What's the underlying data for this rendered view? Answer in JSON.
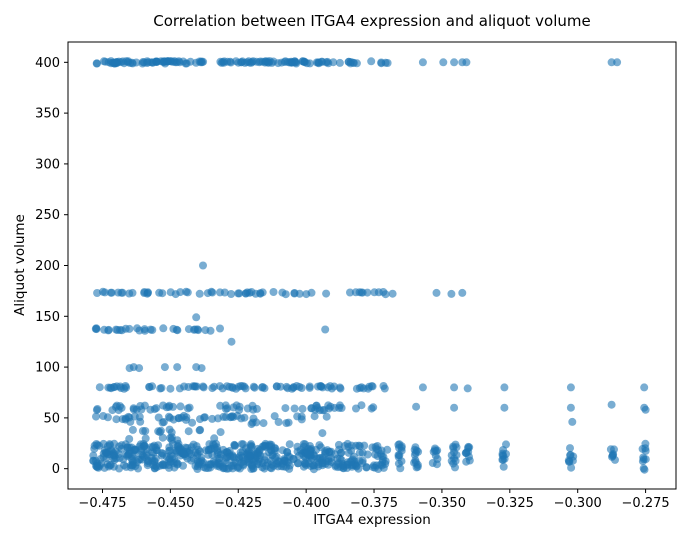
{
  "chart_data": {
    "type": "scatter",
    "title": "Correlation between ITGA4 expression and aliquot volume",
    "xlabel": "ITGA4 expression",
    "ylabel": "Aliquot volume",
    "xlim": [
      -0.4877,
      -0.2638
    ],
    "ylim": [
      -20,
      420
    ],
    "grid": false,
    "legend": "none",
    "marker_color": "#1f77b4",
    "marker_alpha": 0.6,
    "marker_radius": 4,
    "seed": 7,
    "xticks": [
      {
        "value": -0.475,
        "label": "−0.475"
      },
      {
        "value": -0.45,
        "label": "−0.450"
      },
      {
        "value": -0.425,
        "label": "−0.425"
      },
      {
        "value": -0.4,
        "label": "−0.400"
      },
      {
        "value": -0.375,
        "label": "−0.375"
      },
      {
        "value": -0.35,
        "label": "−0.350"
      },
      {
        "value": -0.325,
        "label": "−0.325"
      },
      {
        "value": -0.3,
        "label": "−0.300"
      },
      {
        "value": -0.275,
        "label": "−0.275"
      }
    ],
    "yticks": [
      {
        "value": 0,
        "label": "0"
      },
      {
        "value": 50,
        "label": "50"
      },
      {
        "value": 100,
        "label": "100"
      },
      {
        "value": 150,
        "label": "150"
      },
      {
        "value": 200,
        "label": "200"
      },
      {
        "value": 250,
        "label": "250"
      },
      {
        "value": 300,
        "label": "300"
      },
      {
        "value": 350,
        "label": "350"
      },
      {
        "value": 400,
        "label": "400"
      }
    ],
    "bands": [
      {
        "y": 400,
        "jitter": 1.2,
        "x_min": -0.4775,
        "x_max": -0.437,
        "n": 70
      },
      {
        "y": 400,
        "jitter": 1.2,
        "x_min": -0.434,
        "x_max": -0.398,
        "n": 55
      },
      {
        "y": 400,
        "jitter": 1.2,
        "x_min": -0.397,
        "x_max": -0.381,
        "n": 18
      },
      {
        "y": 400,
        "jitter": 1.0,
        "x_min": -0.377,
        "x_max": -0.368,
        "n": 5
      },
      {
        "y": 173,
        "jitter": 1.3,
        "x_min": -0.4775,
        "x_max": -0.398,
        "n": 48
      },
      {
        "y": 173,
        "jitter": 1.3,
        "x_min": -0.397,
        "x_max": -0.368,
        "n": 12
      },
      {
        "y": 137,
        "jitter": 1.3,
        "x_min": -0.4775,
        "x_max": -0.4285,
        "n": 30
      },
      {
        "y": 80,
        "jitter": 1.5,
        "x_min": -0.4775,
        "x_max": -0.37,
        "n": 80
      },
      {
        "y": 60,
        "jitter": 2.5,
        "x_min": -0.4775,
        "x_max": -0.374,
        "n": 60
      },
      {
        "y": 50,
        "jitter": 2.0,
        "x_min": -0.4775,
        "x_max": -0.392,
        "n": 42
      },
      {
        "y": 45,
        "jitter": 1.2,
        "x_min": -0.473,
        "x_max": -0.401,
        "n": 12
      },
      {
        "y": 37,
        "jitter": 1.5,
        "x_min": -0.4775,
        "x_max": -0.428,
        "n": 12
      },
      {
        "y": 30,
        "jitter": 2.0,
        "x_min": -0.472,
        "x_max": -0.432,
        "n": 8
      },
      {
        "y": 12,
        "jitter": 12.5,
        "x_min": -0.4785,
        "x_max": -0.37,
        "n": 520
      }
    ],
    "vbands": [
      {
        "x": -0.3655,
        "y_min": 0,
        "y_max": 25,
        "n": 12
      },
      {
        "x": -0.3595,
        "y_min": 0,
        "y_max": 25,
        "n": 12
      },
      {
        "x": -0.3525,
        "y_min": 0,
        "y_max": 24,
        "n": 9
      },
      {
        "x": -0.3455,
        "y_min": 0,
        "y_max": 25,
        "n": 12
      },
      {
        "x": -0.3405,
        "y_min": 0,
        "y_max": 25,
        "n": 10
      },
      {
        "x": -0.327,
        "y_min": 0,
        "y_max": 25,
        "n": 10
      },
      {
        "x": -0.3025,
        "y_min": 0,
        "y_max": 23,
        "n": 9
      },
      {
        "x": -0.287,
        "y_min": 0,
        "y_max": 20,
        "n": 7
      },
      {
        "x": -0.2755,
        "y_min": -2,
        "y_max": 25,
        "n": 10
      }
    ],
    "points": [
      [
        -0.438,
        200
      ],
      [
        -0.4405,
        149
      ],
      [
        -0.4275,
        125
      ],
      [
        -0.393,
        137
      ],
      [
        -0.465,
        99
      ],
      [
        -0.4635,
        100
      ],
      [
        -0.4615,
        99
      ],
      [
        -0.452,
        100
      ],
      [
        -0.4475,
        100
      ],
      [
        -0.4405,
        100
      ],
      [
        -0.4385,
        99
      ],
      [
        -0.357,
        400
      ],
      [
        -0.3495,
        400
      ],
      [
        -0.3455,
        400
      ],
      [
        -0.3425,
        400
      ],
      [
        -0.341,
        400
      ],
      [
        -0.2875,
        400
      ],
      [
        -0.2855,
        400
      ],
      [
        -0.352,
        173
      ],
      [
        -0.3465,
        172
      ],
      [
        -0.3425,
        173
      ],
      [
        -0.357,
        80
      ],
      [
        -0.3455,
        80
      ],
      [
        -0.3405,
        79
      ],
      [
        -0.327,
        80
      ],
      [
        -0.3025,
        80
      ],
      [
        -0.2755,
        80
      ],
      [
        -0.3595,
        61
      ],
      [
        -0.3455,
        60
      ],
      [
        -0.327,
        60
      ],
      [
        -0.3025,
        60
      ],
      [
        -0.302,
        46
      ],
      [
        -0.2875,
        63
      ],
      [
        -0.2755,
        60
      ],
      [
        -0.275,
        58
      ],
      [
        -0.394,
        35
      ]
    ]
  }
}
